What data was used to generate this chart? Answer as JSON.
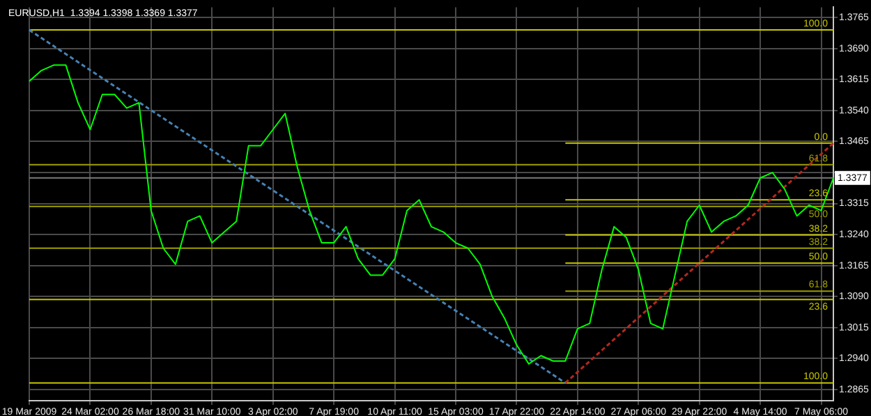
{
  "chart_data": {
    "type": "line",
    "title": "EURUSD,H1  1.3394 1.3398 1.3369 1.3377",
    "categories": [
      "19 Mar 2009",
      null,
      null,
      null,
      null,
      "24 Mar 02:00",
      null,
      null,
      null,
      null,
      "26 Mar 18:00",
      null,
      null,
      null,
      null,
      "31 Mar 10:00",
      null,
      null,
      null,
      null,
      "3 Apr 02:00",
      null,
      null,
      null,
      null,
      "7 Apr 19:00",
      null,
      null,
      null,
      null,
      "10 Apr 11:00",
      null,
      null,
      null,
      null,
      "15 Apr 03:00",
      null,
      null,
      null,
      null,
      "17 Apr 22:00",
      null,
      null,
      null,
      null,
      "22 Apr 14:00",
      null,
      null,
      null,
      null,
      "27 Apr 06:00",
      null,
      null,
      null,
      null,
      "29 Apr 22:00",
      null,
      null,
      null,
      null,
      "4 May 14:00",
      null,
      null,
      null,
      null,
      "7 May 06:00",
      null
    ],
    "series": [
      {
        "color": "#00ff00",
        "values": [
          1.3611,
          1.3637,
          1.365,
          1.365,
          1.3559,
          1.3494,
          1.3579,
          1.3579,
          1.3546,
          1.3559,
          1.3298,
          1.3207,
          1.3168,
          1.3272,
          1.3285,
          1.322,
          1.3246,
          1.3272,
          1.3455,
          1.3455,
          1.3494,
          1.3533,
          1.3403,
          1.3298,
          1.322,
          1.322,
          1.3259,
          1.3181,
          1.3142,
          1.3142,
          1.3181,
          1.3298,
          1.3324,
          1.3259,
          1.3246,
          1.322,
          1.3207,
          1.3168,
          1.309,
          1.3038,
          1.2973,
          1.2927,
          1.2947,
          1.2934,
          1.2934,
          1.3012,
          1.3025,
          1.3155,
          1.3259,
          1.3233,
          1.3155,
          1.3025,
          1.3012,
          1.3142,
          1.3272,
          1.3311,
          1.3246,
          1.3272,
          1.3285,
          1.3311,
          1.3377,
          1.339,
          1.335,
          1.3285,
          1.3311,
          1.3298,
          1.3377
        ]
      },
      {
        "color": "#4682b4",
        "line_style": "dotted",
        "values": [
          1.3735,
          null,
          null,
          null,
          null,
          null,
          null,
          null,
          null,
          null,
          null,
          null,
          null,
          null,
          null,
          null,
          null,
          null,
          null,
          null,
          null,
          null,
          null,
          null,
          null,
          null,
          null,
          null,
          null,
          null,
          null,
          null,
          null,
          null,
          null,
          null,
          null,
          null,
          null,
          null,
          null,
          null,
          null,
          null,
          1.2881,
          null,
          null,
          null,
          null,
          null,
          null,
          null,
          null,
          null,
          null,
          null,
          null,
          null,
          null,
          null,
          null,
          null,
          null,
          null,
          null,
          null,
          null
        ]
      },
      {
        "color": "#b4281e",
        "line_style": "dotted",
        "values": [
          null,
          null,
          null,
          null,
          null,
          null,
          null,
          null,
          null,
          null,
          null,
          null,
          null,
          null,
          null,
          null,
          null,
          null,
          null,
          null,
          null,
          null,
          null,
          null,
          null,
          null,
          null,
          null,
          null,
          null,
          null,
          null,
          null,
          null,
          null,
          null,
          null,
          null,
          null,
          null,
          null,
          null,
          null,
          null,
          1.2881,
          null,
          null,
          null,
          null,
          null,
          null,
          null,
          null,
          null,
          null,
          null,
          null,
          null,
          null,
          null,
          null,
          null,
          null,
          null,
          null,
          null,
          1.3461
        ]
      },
      {
        "name": "100.0",
        "color": "#c8c800",
        "values": [
          1.3735,
          1.3735,
          1.3735,
          1.3735,
          1.3735,
          1.3735,
          1.3735,
          1.3735,
          1.3735,
          1.3735,
          1.3735,
          1.3735,
          1.3735,
          1.3735,
          1.3735,
          1.3735,
          1.3735,
          1.3735,
          1.3735,
          1.3735,
          1.3735,
          1.3735,
          1.3735,
          1.3735,
          1.3735,
          1.3735,
          1.3735,
          1.3735,
          1.3735,
          1.3735,
          1.3735,
          1.3735,
          1.3735,
          1.3735,
          1.3735,
          1.3735,
          1.3735,
          1.3735,
          1.3735,
          1.3735,
          1.3735,
          1.3735,
          1.3735,
          1.3735,
          1.3735,
          1.3735,
          1.3735,
          1.3735,
          1.3735,
          1.3735,
          1.3735,
          1.3735,
          1.3735,
          1.3735,
          1.3735,
          1.3735,
          1.3735,
          1.3735,
          1.3735,
          1.3735,
          1.3735,
          1.3735,
          1.3735,
          1.3735,
          1.3735,
          1.3735,
          1.3735
        ]
      },
      {
        "name": "61.8",
        "color": "#a0a000",
        "values": [
          1.3409,
          1.3409,
          1.3409,
          1.3409,
          1.3409,
          1.3409,
          1.3409,
          1.3409,
          1.3409,
          1.3409,
          1.3409,
          1.3409,
          1.3409,
          1.3409,
          1.3409,
          1.3409,
          1.3409,
          1.3409,
          1.3409,
          1.3409,
          1.3409,
          1.3409,
          1.3409,
          1.3409,
          1.3409,
          1.3409,
          1.3409,
          1.3409,
          1.3409,
          1.3409,
          1.3409,
          1.3409,
          1.3409,
          1.3409,
          1.3409,
          1.3409,
          1.3409,
          1.3409,
          1.3409,
          1.3409,
          1.3409,
          1.3409,
          1.3409,
          1.3409,
          1.3409,
          1.3409,
          1.3409,
          1.3409,
          1.3409,
          1.3409,
          1.3409,
          1.3409,
          1.3409,
          1.3409,
          1.3409,
          1.3409,
          1.3409,
          1.3409,
          1.3409,
          1.3409,
          1.3409,
          1.3409,
          1.3409,
          1.3409,
          1.3409,
          1.3409,
          1.3409
        ]
      },
      {
        "name": "50.0",
        "color": "#a0a000",
        "values": [
          1.3308,
          1.3308,
          1.3308,
          1.3308,
          1.3308,
          1.3308,
          1.3308,
          1.3308,
          1.3308,
          1.3308,
          1.3308,
          1.3308,
          1.3308,
          1.3308,
          1.3308,
          1.3308,
          1.3308,
          1.3308,
          1.3308,
          1.3308,
          1.3308,
          1.3308,
          1.3308,
          1.3308,
          1.3308,
          1.3308,
          1.3308,
          1.3308,
          1.3308,
          1.3308,
          1.3308,
          1.3308,
          1.3308,
          1.3308,
          1.3308,
          1.3308,
          1.3308,
          1.3308,
          1.3308,
          1.3308,
          1.3308,
          1.3308,
          1.3308,
          1.3308,
          1.3308,
          1.3308,
          1.3308,
          1.3308,
          1.3308,
          1.3308,
          1.3308,
          1.3308,
          1.3308,
          1.3308,
          1.3308,
          1.3308,
          1.3308,
          1.3308,
          1.3308,
          1.3308,
          1.3308,
          1.3308,
          1.3308,
          1.3308,
          1.3308,
          1.3308,
          1.3308
        ]
      },
      {
        "name": "38.2",
        "color": "#a0a000",
        "values": [
          1.3207,
          1.3207,
          1.3207,
          1.3207,
          1.3207,
          1.3207,
          1.3207,
          1.3207,
          1.3207,
          1.3207,
          1.3207,
          1.3207,
          1.3207,
          1.3207,
          1.3207,
          1.3207,
          1.3207,
          1.3207,
          1.3207,
          1.3207,
          1.3207,
          1.3207,
          1.3207,
          1.3207,
          1.3207,
          1.3207,
          1.3207,
          1.3207,
          1.3207,
          1.3207,
          1.3207,
          1.3207,
          1.3207,
          1.3207,
          1.3207,
          1.3207,
          1.3207,
          1.3207,
          1.3207,
          1.3207,
          1.3207,
          1.3207,
          1.3207,
          1.3207,
          1.3207,
          1.3207,
          1.3207,
          1.3207,
          1.3207,
          1.3207,
          1.3207,
          1.3207,
          1.3207,
          1.3207,
          1.3207,
          1.3207,
          1.3207,
          1.3207,
          1.3207,
          1.3207,
          1.3207,
          1.3207,
          1.3207,
          1.3207,
          1.3207,
          1.3207,
          1.3207
        ]
      },
      {
        "name": "23.6",
        "color": "#c8c800",
        "values": [
          1.3083,
          1.3083,
          1.3083,
          1.3083,
          1.3083,
          1.3083,
          1.3083,
          1.3083,
          1.3083,
          1.3083,
          1.3083,
          1.3083,
          1.3083,
          1.3083,
          1.3083,
          1.3083,
          1.3083,
          1.3083,
          1.3083,
          1.3083,
          1.3083,
          1.3083,
          1.3083,
          1.3083,
          1.3083,
          1.3083,
          1.3083,
          1.3083,
          1.3083,
          1.3083,
          1.3083,
          1.3083,
          1.3083,
          1.3083,
          1.3083,
          1.3083,
          1.3083,
          1.3083,
          1.3083,
          1.3083,
          1.3083,
          1.3083,
          1.3083,
          1.3083,
          1.3083,
          1.3083,
          1.3083,
          1.3083,
          1.3083,
          1.3083,
          1.3083,
          1.3083,
          1.3083,
          1.3083,
          1.3083,
          1.3083,
          1.3083,
          1.3083,
          1.3083,
          1.3083,
          1.3083,
          1.3083,
          1.3083,
          1.3083,
          1.3083,
          1.3083,
          1.3083
        ]
      },
      {
        "name": "100.0",
        "color": "#c8c800",
        "values": [
          1.2881,
          1.2881,
          1.2881,
          1.2881,
          1.2881,
          1.2881,
          1.2881,
          1.2881,
          1.2881,
          1.2881,
          1.2881,
          1.2881,
          1.2881,
          1.2881,
          1.2881,
          1.2881,
          1.2881,
          1.2881,
          1.2881,
          1.2881,
          1.2881,
          1.2881,
          1.2881,
          1.2881,
          1.2881,
          1.2881,
          1.2881,
          1.2881,
          1.2881,
          1.2881,
          1.2881,
          1.2881,
          1.2881,
          1.2881,
          1.2881,
          1.2881,
          1.2881,
          1.2881,
          1.2881,
          1.2881,
          1.2881,
          1.2881,
          1.2881,
          1.2881,
          1.2881,
          1.2881,
          1.2881,
          1.2881,
          1.2881,
          1.2881,
          1.2881,
          1.2881,
          1.2881,
          1.2881,
          1.2881,
          1.2881,
          1.2881,
          1.2881,
          1.2881,
          1.2881,
          1.2881,
          1.2881,
          1.2881,
          1.2881,
          1.2881,
          1.2881,
          1.2881
        ]
      },
      {
        "name": "0.0",
        "color": "#c8c800",
        "values": [
          null,
          null,
          null,
          null,
          null,
          null,
          null,
          null,
          null,
          null,
          null,
          null,
          null,
          null,
          null,
          null,
          null,
          null,
          null,
          null,
          null,
          null,
          null,
          null,
          null,
          null,
          null,
          null,
          null,
          null,
          null,
          null,
          null,
          null,
          null,
          null,
          null,
          null,
          null,
          null,
          null,
          null,
          null,
          null,
          1.3461,
          1.3461,
          1.3461,
          1.3461,
          1.3461,
          1.3461,
          1.3461,
          1.3461,
          1.3461,
          1.3461,
          1.3461,
          1.3461,
          1.3461,
          1.3461,
          1.3461,
          1.3461,
          1.3461,
          1.3461,
          1.3461,
          1.3461,
          1.3461,
          1.3461,
          1.3461
        ]
      },
      {
        "name": "23.6",
        "color": "#c8c800",
        "values": [
          null,
          null,
          null,
          null,
          null,
          null,
          null,
          null,
          null,
          null,
          null,
          null,
          null,
          null,
          null,
          null,
          null,
          null,
          null,
          null,
          null,
          null,
          null,
          null,
          null,
          null,
          null,
          null,
          null,
          null,
          null,
          null,
          null,
          null,
          null,
          null,
          null,
          null,
          null,
          null,
          null,
          null,
          null,
          null,
          1.3324,
          1.3324,
          1.3324,
          1.3324,
          1.3324,
          1.3324,
          1.3324,
          1.3324,
          1.3324,
          1.3324,
          1.3324,
          1.3324,
          1.3324,
          1.3324,
          1.3324,
          1.3324,
          1.3324,
          1.3324,
          1.3324,
          1.3324,
          1.3324,
          1.3324,
          1.3324
        ]
      },
      {
        "name": "38.2",
        "color": "#c8c800",
        "values": [
          null,
          null,
          null,
          null,
          null,
          null,
          null,
          null,
          null,
          null,
          null,
          null,
          null,
          null,
          null,
          null,
          null,
          null,
          null,
          null,
          null,
          null,
          null,
          null,
          null,
          null,
          null,
          null,
          null,
          null,
          null,
          null,
          null,
          null,
          null,
          null,
          null,
          null,
          null,
          null,
          null,
          null,
          null,
          null,
          1.3239,
          1.3239,
          1.3239,
          1.3239,
          1.3239,
          1.3239,
          1.3239,
          1.3239,
          1.3239,
          1.3239,
          1.3239,
          1.3239,
          1.3239,
          1.3239,
          1.3239,
          1.3239,
          1.3239,
          1.3239,
          1.3239,
          1.3239,
          1.3239,
          1.3239,
          1.3239
        ]
      },
      {
        "name": "50.0",
        "color": "#c8c800",
        "values": [
          null,
          null,
          null,
          null,
          null,
          null,
          null,
          null,
          null,
          null,
          null,
          null,
          null,
          null,
          null,
          null,
          null,
          null,
          null,
          null,
          null,
          null,
          null,
          null,
          null,
          null,
          null,
          null,
          null,
          null,
          null,
          null,
          null,
          null,
          null,
          null,
          null,
          null,
          null,
          null,
          null,
          null,
          null,
          null,
          1.3171,
          1.3171,
          1.3171,
          1.3171,
          1.3171,
          1.3171,
          1.3171,
          1.3171,
          1.3171,
          1.3171,
          1.3171,
          1.3171,
          1.3171,
          1.3171,
          1.3171,
          1.3171,
          1.3171,
          1.3171,
          1.3171,
          1.3171,
          1.3171,
          1.3171,
          1.3171
        ]
      },
      {
        "name": "61.8",
        "color": "#a0a000",
        "values": [
          null,
          null,
          null,
          null,
          null,
          null,
          null,
          null,
          null,
          null,
          null,
          null,
          null,
          null,
          null,
          null,
          null,
          null,
          null,
          null,
          null,
          null,
          null,
          null,
          null,
          null,
          null,
          null,
          null,
          null,
          null,
          null,
          null,
          null,
          null,
          null,
          null,
          null,
          null,
          null,
          null,
          null,
          null,
          null,
          1.3103,
          1.3103,
          1.3103,
          1.3103,
          1.3103,
          1.3103,
          1.3103,
          1.3103,
          1.3103,
          1.3103,
          1.3103,
          1.3103,
          1.3103,
          1.3103,
          1.3103,
          1.3103,
          1.3103,
          1.3103,
          1.3103,
          1.3103,
          1.3103,
          1.3103,
          1.3103
        ]
      }
    ],
    "ylim": [
      1.2838,
      1.379
    ],
    "yticks": [
      1.2865,
      {
        "value": 1.294,
        "label": "1.2940"
      },
      1.3015,
      {
        "value": 1.309,
        "label": "1.3090"
      },
      1.3165,
      {
        "value": 1.324,
        "label": "1.3240"
      },
      1.3315,
      {
        "value": 1.339,
        "label": null
      },
      1.3465,
      {
        "value": 1.354,
        "label": "1.3540"
      },
      1.3615,
      {
        "value": 1.369,
        "label": "1.3690"
      },
      1.3765
    ],
    "grid": true,
    "marker": "none",
    "ref_lines": [
      {
        "axis": "y",
        "value": 1.3377,
        "label": "1.3377",
        "color": "#7a7a7a"
      }
    ]
  }
}
